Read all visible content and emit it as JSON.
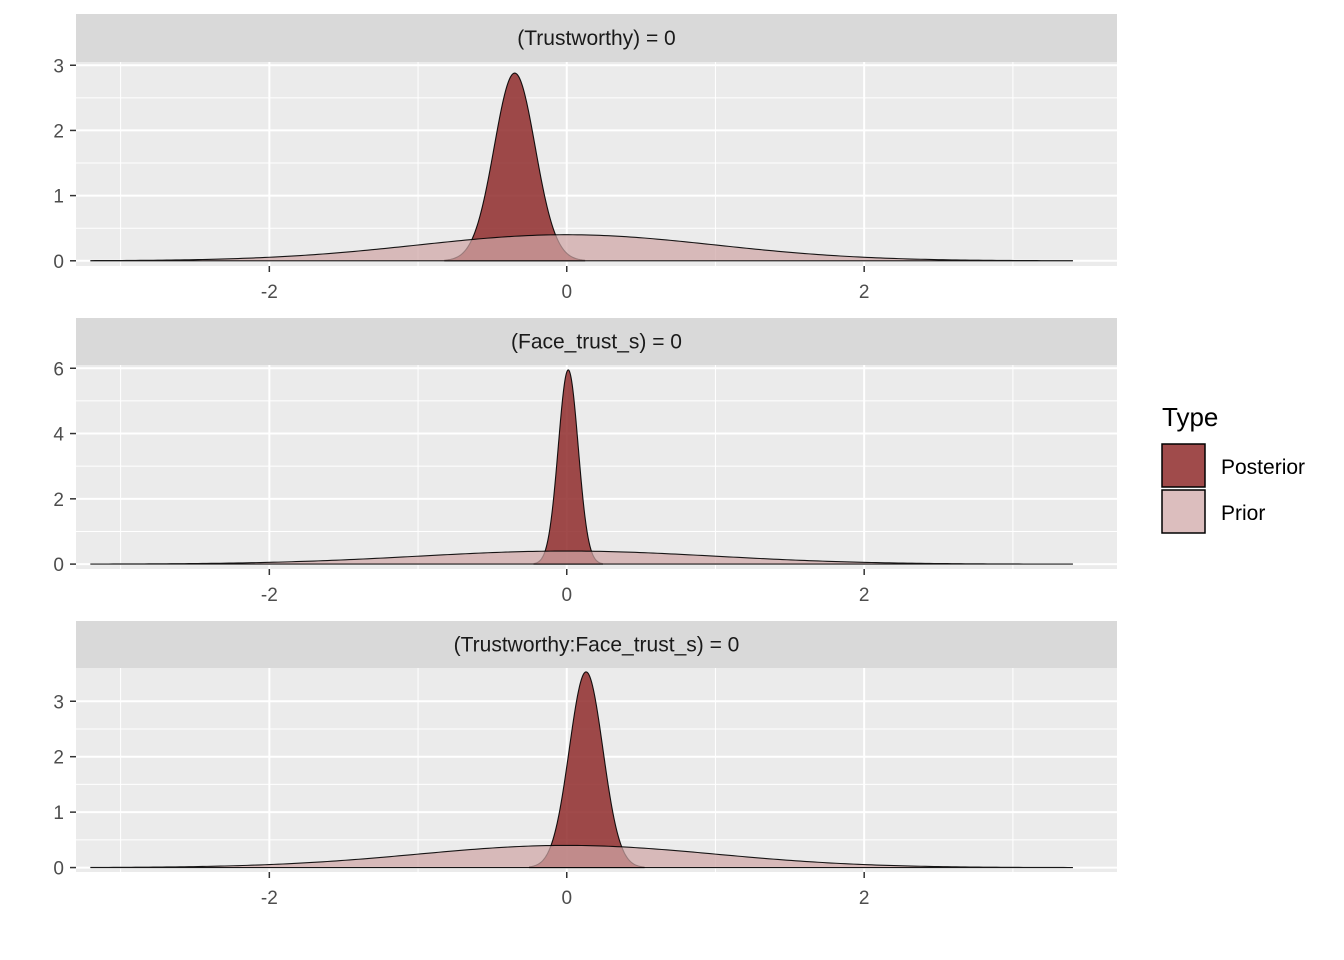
{
  "chart_data": {
    "type": "area",
    "facet_wrap": "vertical",
    "x_range": [
      -3.3,
      3.7
    ],
    "x_ticks": [
      -2,
      0,
      2
    ],
    "x_tick_labels": [
      "-2",
      "0",
      "2"
    ],
    "colors": {
      "Posterior": "#8b2323",
      "Prior": "#cfa5a5",
      "panel_bg": "#ebebeb",
      "strip_bg": "#d9d9d9",
      "grid": "#ffffff"
    },
    "legend": {
      "title": "Type",
      "position": "right",
      "entries": [
        {
          "name": "Posterior",
          "color": "#8b2323"
        },
        {
          "name": "Prior",
          "color": "#cfa5a5"
        }
      ]
    },
    "panels": [
      {
        "title": "(Trustworthy) = 0",
        "ylim": [
          -0.08,
          3.05
        ],
        "y_ticks": [
          0,
          1,
          2,
          3
        ],
        "y_tick_labels": [
          "0",
          "1",
          "2",
          "3"
        ],
        "series": [
          {
            "name": "Posterior",
            "distribution": "normal",
            "mean": -0.35,
            "sd": 0.138,
            "x_min": -0.82,
            "x_max": 0.12,
            "peak": 2.88
          },
          {
            "name": "Prior",
            "distribution": "normal",
            "mean": 0.0,
            "sd": 1.0,
            "x_min": -3.2,
            "x_max": 3.4,
            "peak": 0.4
          }
        ]
      },
      {
        "title": "(Face_trust_s) = 0",
        "ylim": [
          -0.15,
          6.1
        ],
        "y_ticks": [
          0,
          2,
          4,
          6
        ],
        "y_tick_labels": [
          "0",
          "2",
          "4",
          "6"
        ],
        "series": [
          {
            "name": "Posterior",
            "distribution": "normal",
            "mean": 0.01,
            "sd": 0.067,
            "x_min": -0.22,
            "x_max": 0.24,
            "peak": 5.95
          },
          {
            "name": "Prior",
            "distribution": "normal",
            "mean": 0.0,
            "sd": 1.0,
            "x_min": -3.2,
            "x_max": 3.4,
            "peak": 0.4
          }
        ]
      },
      {
        "title": "(Trustworthy:Face_trust_s) = 0",
        "ylim": [
          -0.08,
          3.6
        ],
        "y_ticks": [
          0,
          1,
          2,
          3
        ],
        "y_tick_labels": [
          "0",
          "1",
          "2",
          "3"
        ],
        "series": [
          {
            "name": "Posterior",
            "distribution": "normal",
            "mean": 0.13,
            "sd": 0.113,
            "x_min": -0.25,
            "x_max": 0.52,
            "peak": 3.53
          },
          {
            "name": "Prior",
            "distribution": "normal",
            "mean": 0.0,
            "sd": 1.0,
            "x_min": -3.2,
            "x_max": 3.4,
            "peak": 0.4
          }
        ]
      }
    ]
  }
}
